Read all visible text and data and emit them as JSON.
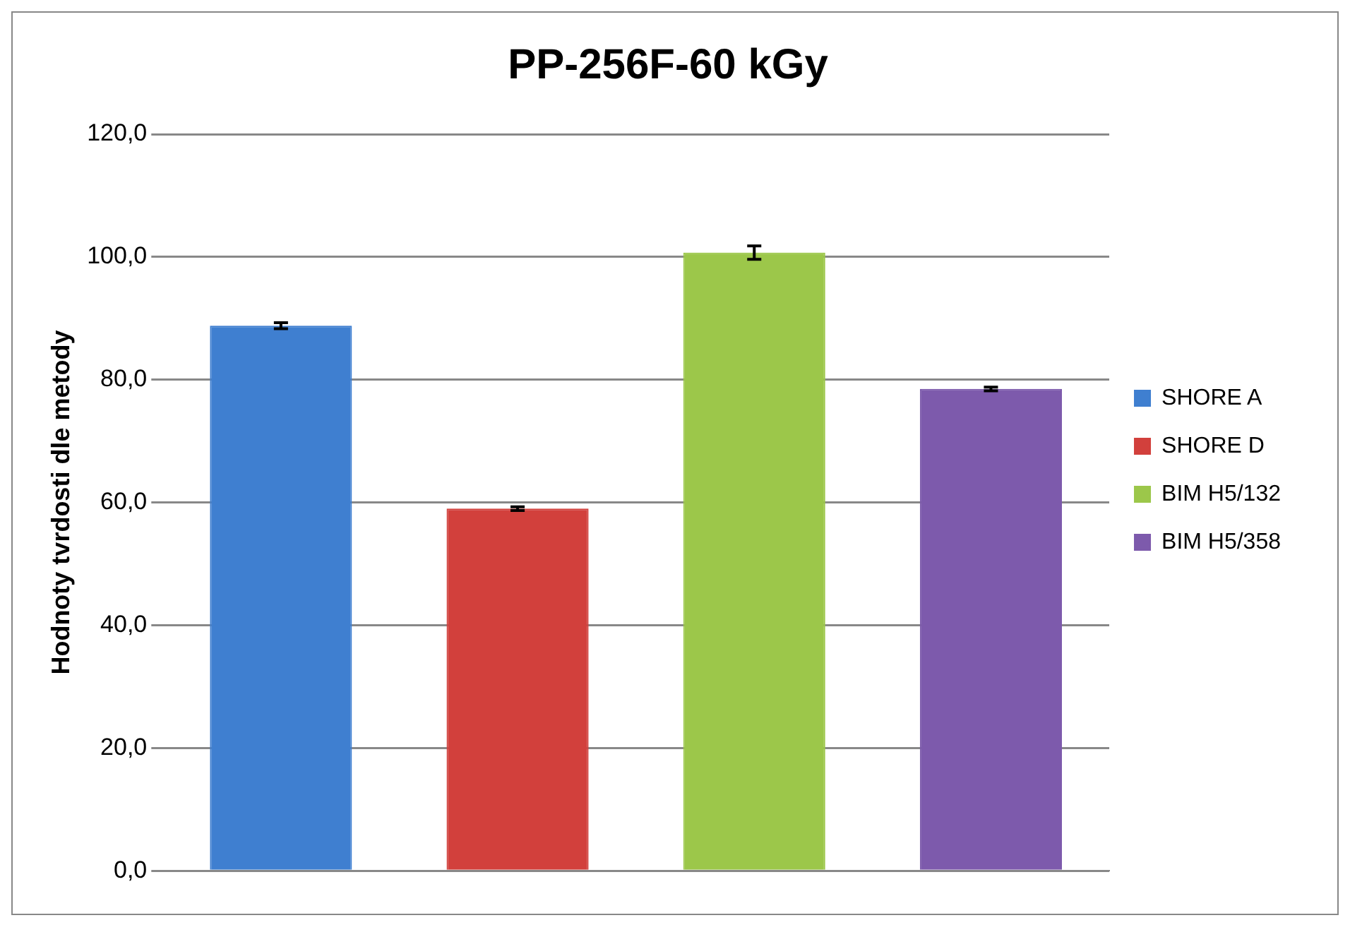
{
  "chart_data": {
    "type": "bar",
    "title": "PP-256F-60 kGy",
    "ylabel": "Hodnoty tvrdosti dle metody",
    "categories": [
      null
    ],
    "series": [
      {
        "name": "SHORE A",
        "color": "#3f7fd0",
        "values": [
          88.8
        ],
        "errors": [
          0.5
        ]
      },
      {
        "name": "SHORE D",
        "color": "#d2403c",
        "values": [
          59.0
        ],
        "errors": [
          0.3
        ]
      },
      {
        "name": "BIM H5/132",
        "color": "#9cc74a",
        "values": [
          100.7
        ],
        "errors": [
          1.1
        ]
      },
      {
        "name": "BIM H5/358",
        "color": "#7d5aac",
        "values": [
          78.5
        ],
        "errors": [
          0.3
        ]
      }
    ],
    "ylim": [
      0,
      120
    ],
    "yticks": [
      {
        "value": 0,
        "label": "0,0"
      },
      {
        "value": 20,
        "label": "20,0"
      },
      {
        "value": 40,
        "label": "40,0"
      },
      {
        "value": 60,
        "label": "60,0"
      },
      {
        "value": 80,
        "label": "80,0"
      },
      {
        "value": 100,
        "label": "100,0"
      },
      {
        "value": 120,
        "label": "120,0"
      }
    ],
    "grid": "y",
    "legend": "right"
  }
}
